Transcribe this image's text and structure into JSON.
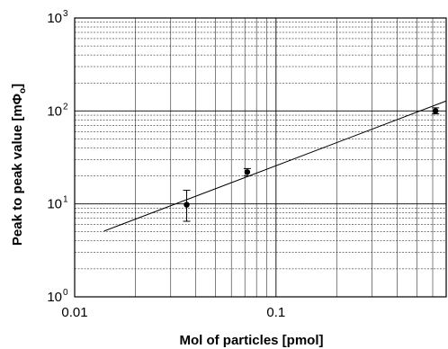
{
  "chart_data": {
    "type": "scatter",
    "title": "",
    "xlabel": "Mol of particles [pmol]",
    "ylabel_prefix": "Peak to peak value [mΦ",
    "ylabel_sub": "o",
    "ylabel_suffix": "]",
    "xscale": "log",
    "yscale": "log",
    "xlim": [
      0.01,
      0.7
    ],
    "ylim": [
      1,
      1000
    ],
    "grid": true,
    "x_ticks": [
      {
        "value": 0.01,
        "label": "0.01"
      },
      {
        "value": 0.1,
        "label": "0.1"
      }
    ],
    "y_ticks": [
      {
        "value": 1,
        "base": "10",
        "exp": "0"
      },
      {
        "value": 10,
        "base": "10",
        "exp": "1"
      },
      {
        "value": 100,
        "base": "10",
        "exp": "2"
      },
      {
        "value": 1000,
        "base": "10",
        "exp": "3"
      }
    ],
    "series": [
      {
        "points": [
          {
            "x": 0.036,
            "y": 9.8,
            "ylow": 6.5,
            "yhigh": 14
          },
          {
            "x": 0.072,
            "y": 22,
            "ylow": 20,
            "yhigh": 24
          },
          {
            "x": 0.62,
            "y": 100,
            "ylow": 93,
            "yhigh": 108
          }
        ]
      }
    ],
    "fit_line": {
      "x": [
        0.014,
        0.7
      ],
      "y": [
        5.1,
        128
      ]
    }
  }
}
